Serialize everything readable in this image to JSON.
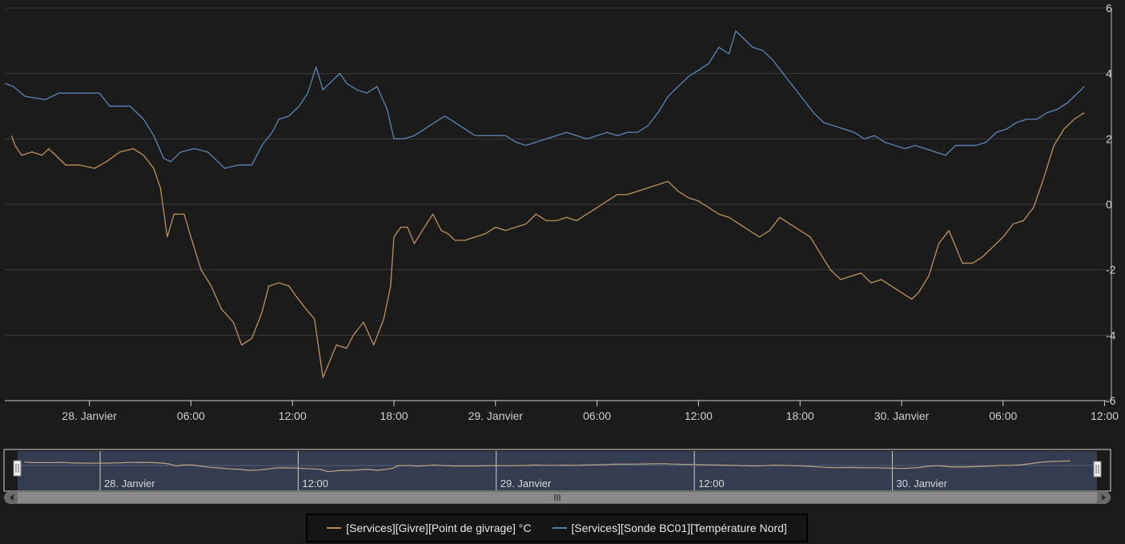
{
  "chart_data": {
    "type": "line",
    "x_ticks": [
      "28. Janvier",
      "06:00",
      "12:00",
      "18:00",
      "29. Janvier",
      "06:00",
      "12:00",
      "18:00",
      "30. Janvier",
      "06:00",
      "12:00"
    ],
    "y_ticks": [
      "6",
      "4",
      "2",
      "0",
      "-2",
      "-4",
      "-6"
    ],
    "ylim": [
      -6,
      6
    ],
    "xlim_hours": [
      -5.0,
      60.4
    ],
    "grid": true,
    "legend_position": "bottom-center",
    "navigator_labels": [
      "28. Janvier",
      "12:00",
      "29. Janvier",
      "12:00",
      "30. Janvier"
    ],
    "series": [
      {
        "name": "[Services][Givre][Point de givrage] °C",
        "color": "#b08a58",
        "points": [
          [
            -4.6,
            2.1
          ],
          [
            -4.4,
            1.8
          ],
          [
            -4.0,
            1.5
          ],
          [
            -3.4,
            1.6
          ],
          [
            -2.8,
            1.5
          ],
          [
            -2.4,
            1.7
          ],
          [
            -2.0,
            1.5
          ],
          [
            -1.4,
            1.2
          ],
          [
            -0.6,
            1.2
          ],
          [
            0.3,
            1.1
          ],
          [
            1.0,
            1.3
          ],
          [
            1.8,
            1.6
          ],
          [
            2.6,
            1.7
          ],
          [
            3.2,
            1.5
          ],
          [
            3.8,
            1.1
          ],
          [
            4.2,
            0.5
          ],
          [
            4.6,
            -1.0
          ],
          [
            5.0,
            -0.3
          ],
          [
            5.6,
            -0.3
          ],
          [
            6.0,
            -1.0
          ],
          [
            6.6,
            -2.0
          ],
          [
            7.2,
            -2.5
          ],
          [
            7.8,
            -3.2
          ],
          [
            8.5,
            -3.6
          ],
          [
            9.0,
            -4.3
          ],
          [
            9.6,
            -4.1
          ],
          [
            10.2,
            -3.3
          ],
          [
            10.6,
            -2.5
          ],
          [
            11.2,
            -2.4
          ],
          [
            11.8,
            -2.5
          ],
          [
            12.2,
            -2.8
          ],
          [
            12.8,
            -3.2
          ],
          [
            13.3,
            -3.5
          ],
          [
            13.8,
            -5.3
          ],
          [
            14.2,
            -4.8
          ],
          [
            14.6,
            -4.3
          ],
          [
            15.2,
            -4.4
          ],
          [
            15.6,
            -4.0
          ],
          [
            16.2,
            -3.6
          ],
          [
            16.8,
            -4.3
          ],
          [
            17.4,
            -3.5
          ],
          [
            17.8,
            -2.5
          ],
          [
            18.0,
            -1.0
          ],
          [
            18.4,
            -0.7
          ],
          [
            18.8,
            -0.7
          ],
          [
            19.2,
            -1.2
          ],
          [
            19.8,
            -0.7
          ],
          [
            20.3,
            -0.3
          ],
          [
            20.8,
            -0.8
          ],
          [
            21.2,
            -0.9
          ],
          [
            21.6,
            -1.1
          ],
          [
            22.2,
            -1.1
          ],
          [
            22.8,
            -1.0
          ],
          [
            23.4,
            -0.9
          ],
          [
            24.0,
            -0.7
          ],
          [
            24.6,
            -0.8
          ],
          [
            25.2,
            -0.7
          ],
          [
            25.8,
            -0.6
          ],
          [
            26.4,
            -0.3
          ],
          [
            27.0,
            -0.5
          ],
          [
            27.6,
            -0.5
          ],
          [
            28.2,
            -0.4
          ],
          [
            28.8,
            -0.5
          ],
          [
            29.4,
            -0.3
          ],
          [
            30.0,
            -0.1
          ],
          [
            30.6,
            0.1
          ],
          [
            31.2,
            0.3
          ],
          [
            31.8,
            0.3
          ],
          [
            32.4,
            0.4
          ],
          [
            33.0,
            0.5
          ],
          [
            33.6,
            0.6
          ],
          [
            34.2,
            0.7
          ],
          [
            34.8,
            0.4
          ],
          [
            35.4,
            0.2
          ],
          [
            36.0,
            0.1
          ],
          [
            36.6,
            -0.1
          ],
          [
            37.2,
            -0.3
          ],
          [
            37.8,
            -0.4
          ],
          [
            38.4,
            -0.6
          ],
          [
            39.0,
            -0.8
          ],
          [
            39.6,
            -1.0
          ],
          [
            40.2,
            -0.8
          ],
          [
            40.8,
            -0.4
          ],
          [
            41.4,
            -0.6
          ],
          [
            42.0,
            -0.8
          ],
          [
            42.6,
            -1.0
          ],
          [
            43.2,
            -1.5
          ],
          [
            43.8,
            -2.0
          ],
          [
            44.4,
            -2.3
          ],
          [
            45.0,
            -2.2
          ],
          [
            45.6,
            -2.1
          ],
          [
            46.2,
            -2.4
          ],
          [
            46.8,
            -2.3
          ],
          [
            47.4,
            -2.5
          ],
          [
            48.0,
            -2.7
          ],
          [
            48.6,
            -2.9
          ],
          [
            49.0,
            -2.7
          ],
          [
            49.6,
            -2.2
          ],
          [
            50.2,
            -1.2
          ],
          [
            50.8,
            -0.8
          ],
          [
            51.2,
            -1.3
          ],
          [
            51.6,
            -1.8
          ],
          [
            52.2,
            -1.8
          ],
          [
            52.8,
            -1.6
          ],
          [
            53.4,
            -1.3
          ],
          [
            54.0,
            -1.0
          ],
          [
            54.6,
            -0.6
          ],
          [
            55.2,
            -0.5
          ],
          [
            55.8,
            -0.1
          ],
          [
            56.4,
            0.8
          ],
          [
            57.0,
            1.8
          ],
          [
            57.6,
            2.3
          ],
          [
            58.2,
            2.6
          ],
          [
            58.8,
            2.8
          ]
        ]
      },
      {
        "name": "[Services][Sonde BC01][Température Nord]",
        "color": "#5a7ea8",
        "points": [
          [
            -5.0,
            3.7
          ],
          [
            -4.5,
            3.6
          ],
          [
            -3.8,
            3.3
          ],
          [
            -2.6,
            3.2
          ],
          [
            -1.8,
            3.4
          ],
          [
            -0.8,
            3.4
          ],
          [
            0.6,
            3.4
          ],
          [
            1.2,
            3.0
          ],
          [
            2.4,
            3.0
          ],
          [
            3.2,
            2.6
          ],
          [
            3.8,
            2.1
          ],
          [
            4.4,
            1.4
          ],
          [
            4.8,
            1.3
          ],
          [
            5.4,
            1.6
          ],
          [
            6.2,
            1.7
          ],
          [
            7.0,
            1.6
          ],
          [
            8.0,
            1.1
          ],
          [
            8.8,
            1.2
          ],
          [
            9.6,
            1.2
          ],
          [
            10.2,
            1.8
          ],
          [
            10.8,
            2.2
          ],
          [
            11.2,
            2.6
          ],
          [
            11.8,
            2.7
          ],
          [
            12.4,
            3.0
          ],
          [
            12.9,
            3.4
          ],
          [
            13.4,
            4.2
          ],
          [
            13.8,
            3.5
          ],
          [
            14.4,
            3.8
          ],
          [
            14.8,
            4.0
          ],
          [
            15.2,
            3.7
          ],
          [
            15.8,
            3.5
          ],
          [
            16.4,
            3.4
          ],
          [
            17.0,
            3.6
          ],
          [
            17.6,
            2.9
          ],
          [
            18.0,
            2.0
          ],
          [
            18.6,
            2.0
          ],
          [
            19.2,
            2.1
          ],
          [
            19.8,
            2.3
          ],
          [
            20.4,
            2.5
          ],
          [
            21.0,
            2.7
          ],
          [
            21.6,
            2.5
          ],
          [
            22.2,
            2.3
          ],
          [
            22.8,
            2.1
          ],
          [
            23.4,
            2.1
          ],
          [
            24.0,
            2.1
          ],
          [
            24.6,
            2.1
          ],
          [
            25.2,
            1.9
          ],
          [
            25.8,
            1.8
          ],
          [
            26.4,
            1.9
          ],
          [
            27.0,
            2.0
          ],
          [
            27.6,
            2.1
          ],
          [
            28.2,
            2.2
          ],
          [
            28.8,
            2.1
          ],
          [
            29.4,
            2.0
          ],
          [
            30.0,
            2.1
          ],
          [
            30.6,
            2.2
          ],
          [
            31.2,
            2.1
          ],
          [
            31.8,
            2.2
          ],
          [
            32.4,
            2.2
          ],
          [
            33.0,
            2.4
          ],
          [
            33.6,
            2.8
          ],
          [
            34.2,
            3.3
          ],
          [
            34.8,
            3.6
          ],
          [
            35.4,
            3.9
          ],
          [
            36.0,
            4.1
          ],
          [
            36.6,
            4.3
          ],
          [
            37.2,
            4.8
          ],
          [
            37.8,
            4.6
          ],
          [
            38.2,
            5.3
          ],
          [
            38.6,
            5.1
          ],
          [
            39.2,
            4.8
          ],
          [
            39.8,
            4.7
          ],
          [
            40.4,
            4.4
          ],
          [
            41.0,
            4.0
          ],
          [
            41.6,
            3.6
          ],
          [
            42.2,
            3.2
          ],
          [
            42.8,
            2.8
          ],
          [
            43.4,
            2.5
          ],
          [
            44.0,
            2.4
          ],
          [
            44.6,
            2.3
          ],
          [
            45.2,
            2.2
          ],
          [
            45.8,
            2.0
          ],
          [
            46.4,
            2.1
          ],
          [
            47.0,
            1.9
          ],
          [
            47.6,
            1.8
          ],
          [
            48.2,
            1.7
          ],
          [
            48.8,
            1.8
          ],
          [
            49.4,
            1.7
          ],
          [
            50.0,
            1.6
          ],
          [
            50.6,
            1.5
          ],
          [
            51.2,
            1.8
          ],
          [
            51.8,
            1.8
          ],
          [
            52.4,
            1.8
          ],
          [
            53.0,
            1.9
          ],
          [
            53.6,
            2.2
          ],
          [
            54.2,
            2.3
          ],
          [
            54.8,
            2.5
          ],
          [
            55.4,
            2.6
          ],
          [
            56.0,
            2.6
          ],
          [
            56.6,
            2.8
          ],
          [
            57.2,
            2.9
          ],
          [
            57.8,
            3.1
          ],
          [
            58.4,
            3.4
          ],
          [
            58.8,
            3.6
          ]
        ]
      }
    ]
  }
}
